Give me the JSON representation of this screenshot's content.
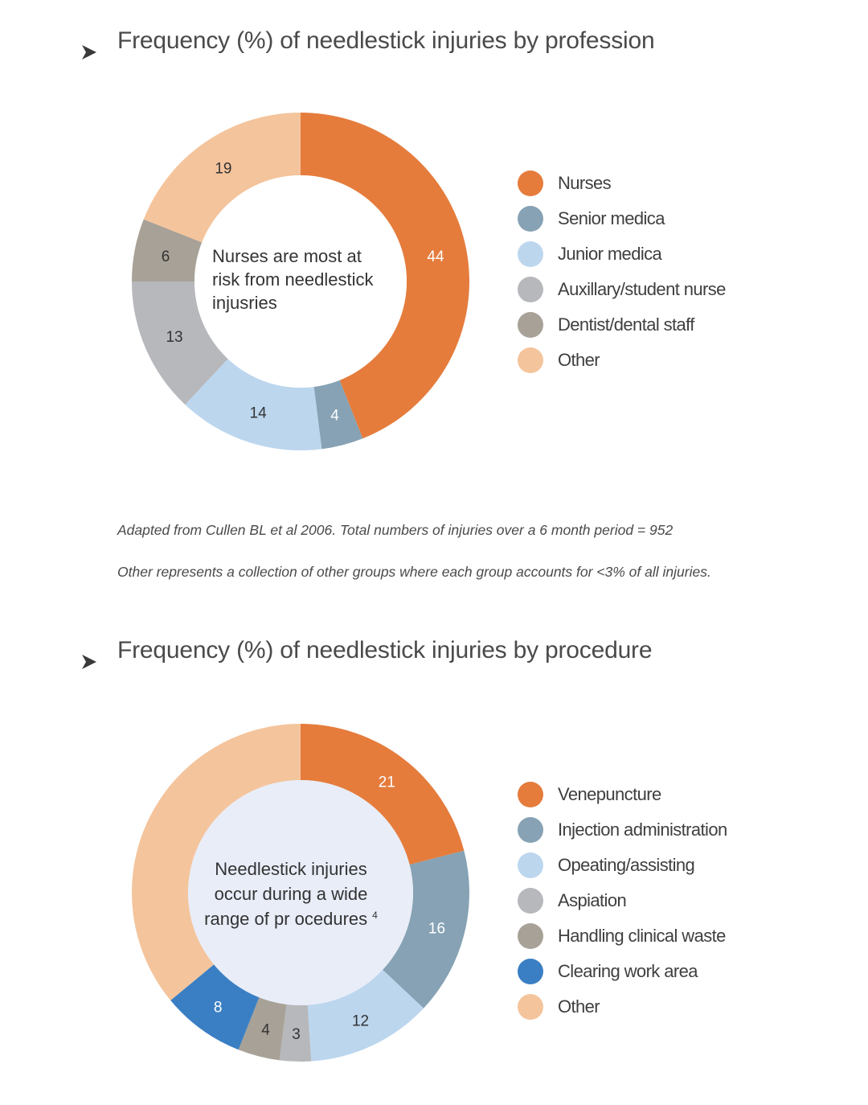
{
  "colors": {
    "orange": "#e57c3c",
    "steel": "#86a2b4",
    "light_blue": "#bcd6ee",
    "gray": "#b7b8bc",
    "taupe": "#a7a197",
    "blue": "#3a7fc3",
    "peach": "#f4c49c",
    "center_fill_2": "#e8edf8",
    "arrow": "#3a3a3a"
  },
  "icons": {
    "section_marker": "arrowhead-right-icon"
  },
  "chart_data": [
    {
      "type": "pie",
      "title": "Frequency (%) of needlestick injuries by profession",
      "center_text": [
        "Nurses are most at",
        "risk from needlestick",
        "injusries"
      ],
      "slices": [
        {
          "label": "Nurses",
          "value": 44,
          "color": "#e57c3c",
          "label_color": "#ffffff"
        },
        {
          "label": "Senior medica",
          "value": 4,
          "color": "#86a2b4",
          "label_color": "#ffffff"
        },
        {
          "label": "Junior medica",
          "value": 14,
          "color": "#bcd6ee",
          "label_color": "#333333"
        },
        {
          "label": "Auxillary/student nurse",
          "value": 13,
          "color": "#b7b8bc",
          "label_color": "#333333"
        },
        {
          "label": "Dentist/dental staff",
          "value": 6,
          "color": "#a7a197",
          "label_color": "#333333"
        },
        {
          "label": "Other",
          "value": 19,
          "color": "#f4c49c",
          "label_color": "#333333"
        }
      ]
    },
    {
      "type": "pie",
      "title": "Frequency (%) of needlestick injuries by procedure",
      "center_text": [
        "Needlestick injuries",
        "occur during a wide",
        "range of pr ocedures"
      ],
      "center_superscript": "4",
      "slices": [
        {
          "label": "Venepuncture",
          "value": 21,
          "color": "#e57c3c",
          "label_color": "#ffffff"
        },
        {
          "label": "Injection administration",
          "value": 16,
          "color": "#86a2b4",
          "label_color": "#ffffff"
        },
        {
          "label": "Opeating/assisting",
          "value": 12,
          "color": "#bcd6ee",
          "label_color": "#333333"
        },
        {
          "label": "Aspiation",
          "value": 3,
          "color": "#b7b8bc",
          "label_color": "#333333"
        },
        {
          "label": "Handling clinical waste",
          "value": 4,
          "color": "#a7a197",
          "label_color": "#333333"
        },
        {
          "label": "Clearing work area",
          "value": 8,
          "color": "#3a7fc3",
          "label_color": "#ffffff"
        },
        {
          "label": "Other",
          "value": 36,
          "color": "#f4c49c",
          "label_color": "#333333",
          "show_value": false
        }
      ]
    }
  ],
  "notes": [
    "Adapted from Cullen BL et al 2006. Total numbers of injuries over a 6 month period = 952",
    "Other represents a collection of other groups where each group accounts for <3% of all injuries."
  ]
}
